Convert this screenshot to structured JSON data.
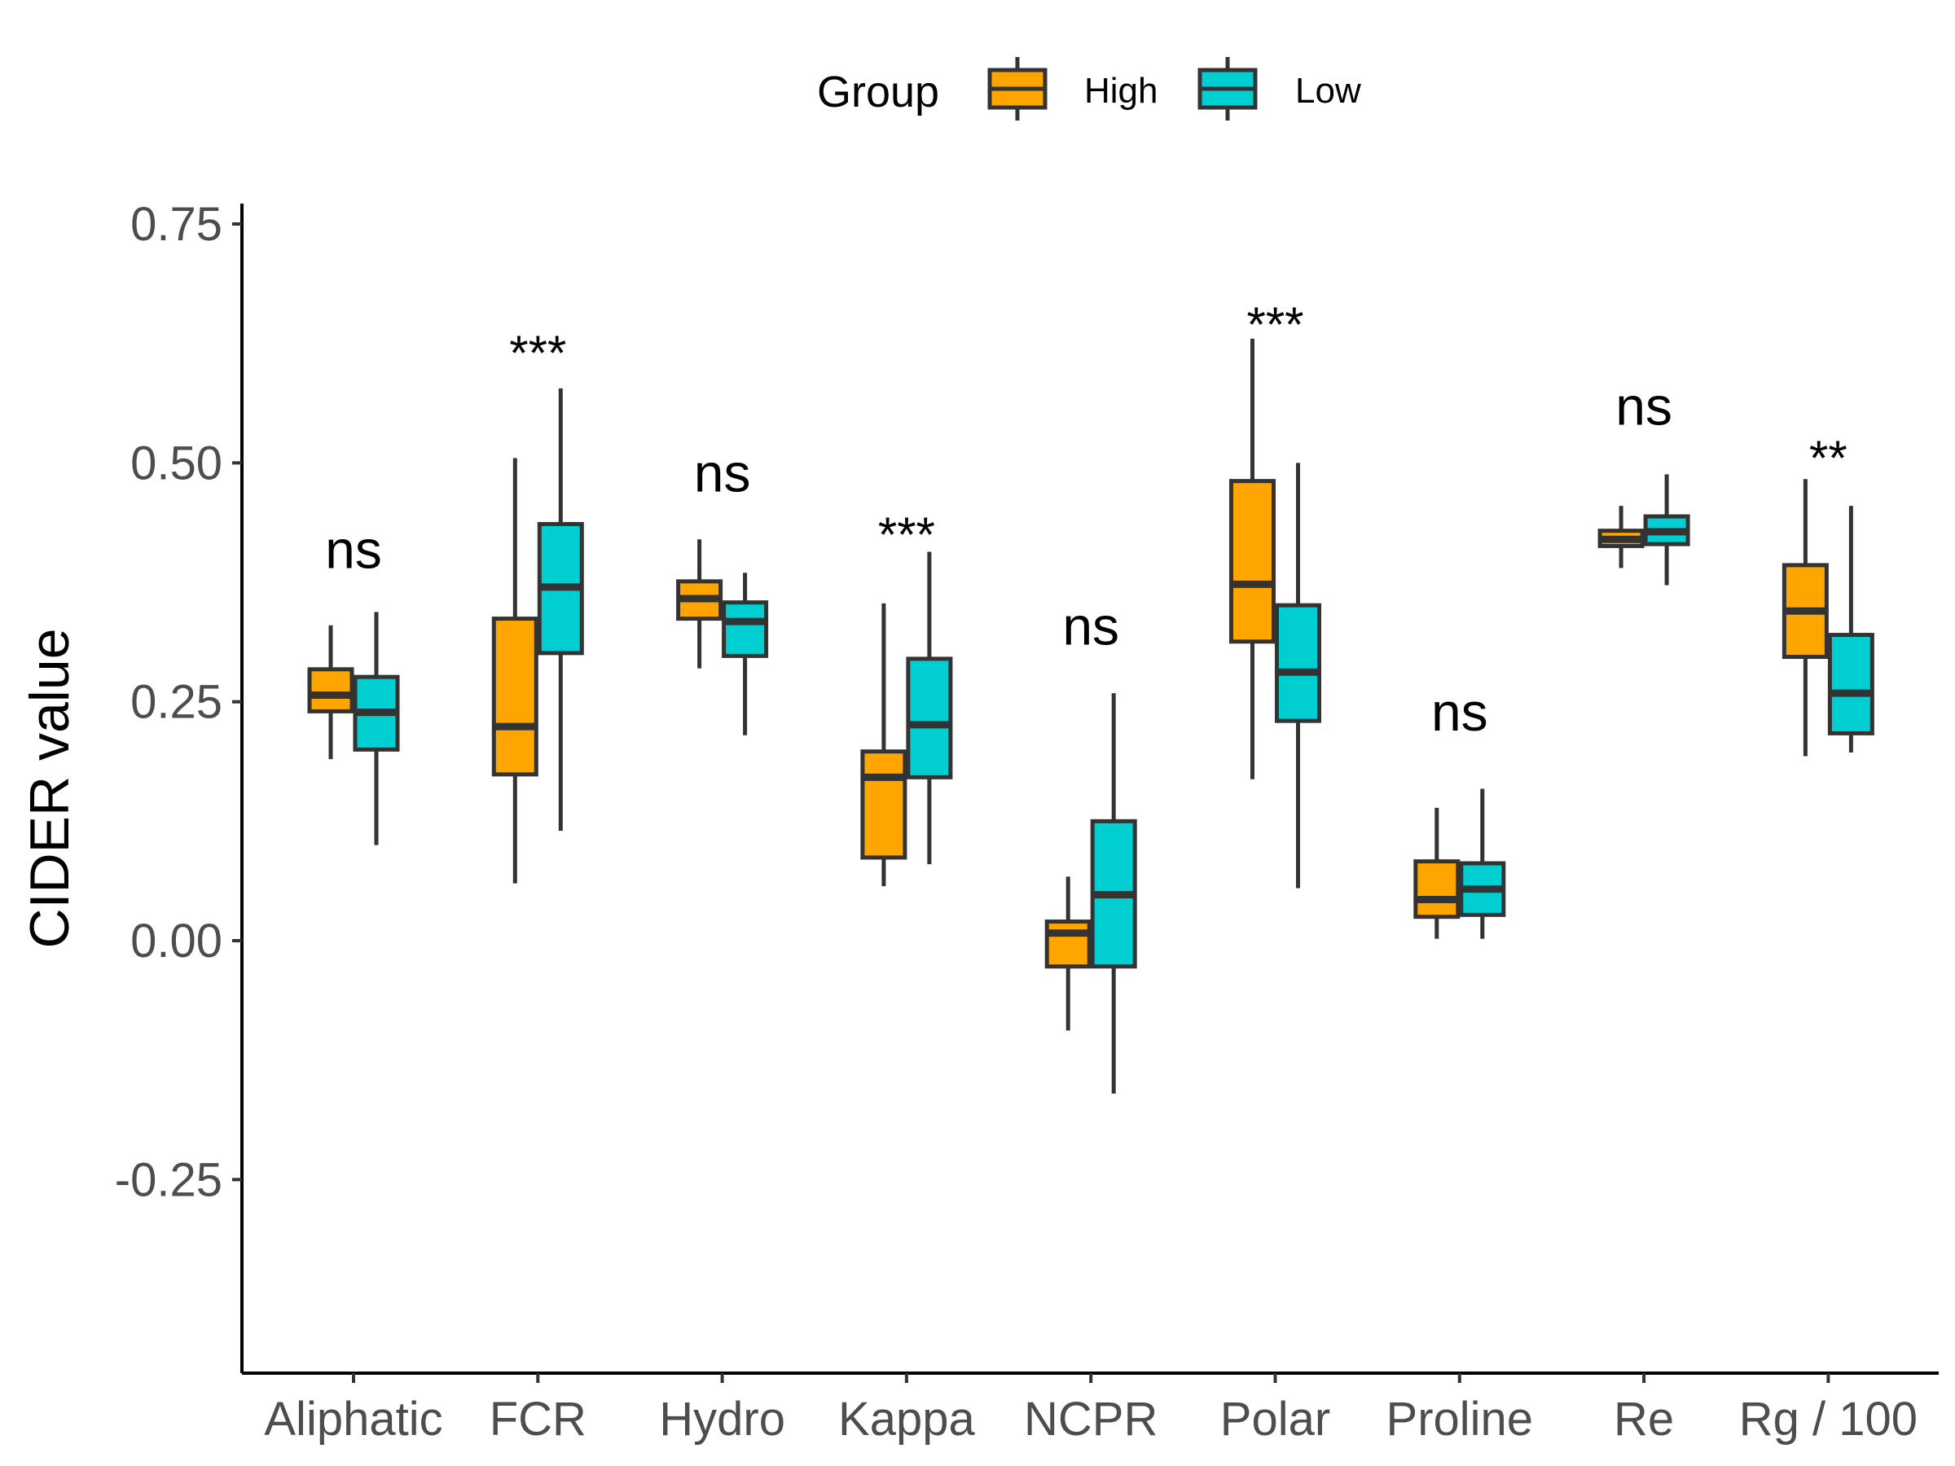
{
  "chart_data": {
    "type": "box",
    "title": "",
    "xlabel": "",
    "ylabel": "CIDER value",
    "ylim": [
      -0.42,
      0.77
    ],
    "yticks": [
      "0.75",
      "0.50",
      "0.25",
      "0.00",
      "-0.25"
    ],
    "ytick_values": [
      0.75,
      0.5,
      0.25,
      0.0,
      -0.25
    ],
    "grid": false,
    "legend": {
      "title": "Group",
      "position": "top"
    },
    "categories": [
      "Aliphatic",
      "FCR",
      "Hydro",
      "Kappa",
      "NCPR",
      "Polar",
      "Proline",
      "Re",
      "Rg / 100"
    ],
    "series": [
      {
        "name": "High",
        "color": "#FFA500",
        "boxes": [
          {
            "whisker_low": 0.19,
            "q1": 0.24,
            "median": 0.257,
            "q3": 0.284,
            "whisker_high": 0.33
          },
          {
            "whisker_low": 0.06,
            "q1": 0.174,
            "median": 0.224,
            "q3": 0.337,
            "whisker_high": 0.505
          },
          {
            "whisker_low": 0.285,
            "q1": 0.337,
            "median": 0.358,
            "q3": 0.376,
            "whisker_high": 0.42
          },
          {
            "whisker_low": 0.057,
            "q1": 0.087,
            "median": 0.171,
            "q3": 0.198,
            "whisker_high": 0.353
          },
          {
            "whisker_low": -0.094,
            "q1": -0.027,
            "median": 0.008,
            "q3": 0.02,
            "whisker_high": 0.067
          },
          {
            "whisker_low": 0.169,
            "q1": 0.313,
            "median": 0.373,
            "q3": 0.481,
            "whisker_high": 0.63
          },
          {
            "whisker_low": 0.002,
            "q1": 0.025,
            "median": 0.043,
            "q3": 0.083,
            "whisker_high": 0.139
          },
          {
            "whisker_low": 0.39,
            "q1": 0.413,
            "median": 0.42,
            "q3": 0.429,
            "whisker_high": 0.455
          },
          {
            "whisker_low": 0.193,
            "q1": 0.297,
            "median": 0.345,
            "q3": 0.393,
            "whisker_high": 0.483
          }
        ]
      },
      {
        "name": "Low",
        "color": "#00CED1",
        "boxes": [
          {
            "whisker_low": 0.1,
            "q1": 0.2,
            "median": 0.239,
            "q3": 0.276,
            "whisker_high": 0.344
          },
          {
            "whisker_low": 0.115,
            "q1": 0.301,
            "median": 0.37,
            "q3": 0.436,
            "whisker_high": 0.578
          },
          {
            "whisker_low": 0.215,
            "q1": 0.298,
            "median": 0.334,
            "q3": 0.354,
            "whisker_high": 0.385
          },
          {
            "whisker_low": 0.08,
            "q1": 0.171,
            "median": 0.226,
            "q3": 0.295,
            "whisker_high": 0.407
          },
          {
            "whisker_low": -0.16,
            "q1": -0.027,
            "median": 0.048,
            "q3": 0.125,
            "whisker_high": 0.259
          },
          {
            "whisker_low": 0.055,
            "q1": 0.23,
            "median": 0.281,
            "q3": 0.351,
            "whisker_high": 0.5
          },
          {
            "whisker_low": 0.002,
            "q1": 0.027,
            "median": 0.054,
            "q3": 0.081,
            "whisker_high": 0.159
          },
          {
            "whisker_low": 0.372,
            "q1": 0.415,
            "median": 0.428,
            "q3": 0.444,
            "whisker_high": 0.488
          },
          {
            "whisker_low": 0.197,
            "q1": 0.217,
            "median": 0.259,
            "q3": 0.32,
            "whisker_high": 0.455
          }
        ]
      }
    ],
    "annotations": [
      {
        "category": "Aliphatic",
        "label": "ns",
        "y": 0.39
      },
      {
        "category": "FCR",
        "label": "***",
        "y": 0.64
      },
      {
        "category": "Hydro",
        "label": "ns",
        "y": 0.47
      },
      {
        "category": "Kappa",
        "label": "***",
        "y": 0.45
      },
      {
        "category": "NCPR",
        "label": "ns",
        "y": 0.31
      },
      {
        "category": "Polar",
        "label": "***",
        "y": 0.67
      },
      {
        "category": "Proline",
        "label": "ns",
        "y": 0.22
      },
      {
        "category": "Re",
        "label": "ns",
        "y": 0.54
      },
      {
        "category": "Rg / 100",
        "label": "**",
        "y": 0.53
      }
    ]
  }
}
